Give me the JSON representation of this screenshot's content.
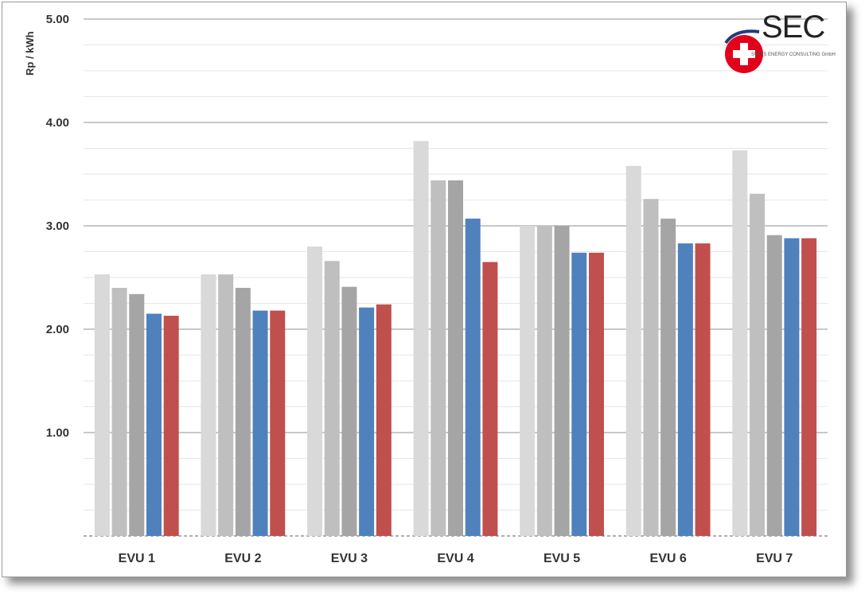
{
  "chart_data": {
    "type": "bar",
    "title": "",
    "xlabel": "",
    "ylabel": "Rp / kWh",
    "ylim": [
      0,
      5
    ],
    "yticks": [
      1,
      2,
      3,
      4,
      5
    ],
    "ytick_labels": [
      "1.00",
      "2.00",
      "3.00",
      "4.00",
      "5.00"
    ],
    "grid": true,
    "categories": [
      "EVU 1",
      "EVU 2",
      "EVU 3",
      "EVU 4",
      "EVU 5",
      "EVU 6",
      "EVU 7"
    ],
    "series": [
      {
        "color": "#d9d9d9",
        "values": [
          2.53,
          2.53,
          2.8,
          3.82,
          3.0,
          3.58,
          3.73
        ]
      },
      {
        "color": "#bfbfbf",
        "values": [
          2.4,
          2.53,
          2.66,
          3.44,
          3.0,
          3.26,
          3.31
        ]
      },
      {
        "color": "#a5a5a5",
        "values": [
          2.34,
          2.4,
          2.41,
          3.44,
          3.0,
          3.07,
          2.91
        ]
      },
      {
        "color": "#4f81bd",
        "values": [
          2.15,
          2.18,
          2.21,
          3.07,
          2.74,
          2.83,
          2.88
        ]
      },
      {
        "color": "#c0504d",
        "values": [
          2.13,
          2.18,
          2.24,
          2.65,
          2.74,
          2.83,
          2.88
        ]
      }
    ]
  },
  "logo": {
    "text": "SEC",
    "subtitle": "SWISS ENERGY CONSULTING GmbH",
    "icon": "swiss-cross-icon",
    "colors": {
      "red": "#e3001b",
      "blue": "#1f3d7a"
    }
  }
}
